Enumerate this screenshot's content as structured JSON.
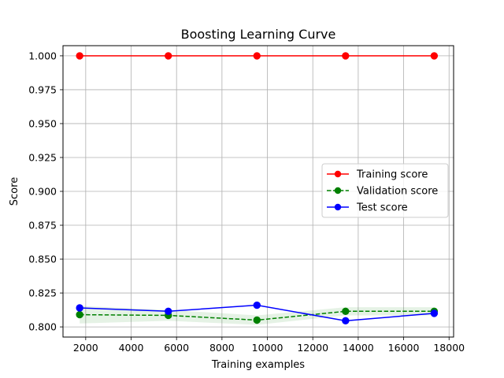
{
  "chart_data": {
    "type": "line",
    "title": "Boosting Learning Curve",
    "xlabel": "Training examples",
    "ylabel": "Score",
    "xlim": [
      1000,
      18200
    ],
    "ylim": [
      0.7925,
      1.0075
    ],
    "xticks": [
      2000,
      4000,
      6000,
      8000,
      10000,
      12000,
      14000,
      16000,
      18000
    ],
    "xtick_labels": [
      "2000",
      "4000",
      "6000",
      "8000",
      "10000",
      "12000",
      "14000",
      "16000",
      "18000"
    ],
    "yticks": [
      0.8,
      0.825,
      0.85,
      0.875,
      0.9,
      0.925,
      0.95,
      0.975,
      1.0
    ],
    "ytick_labels": [
      "0.800",
      "0.825",
      "0.850",
      "0.875",
      "0.900",
      "0.925",
      "0.950",
      "0.975",
      "1.000"
    ],
    "grid": true,
    "legend_position": "center-right",
    "x": [
      1734,
      5637,
      9540,
      13443,
      17346
    ],
    "series": [
      {
        "name": "Training score",
        "values": [
          1.0,
          1.0,
          1.0,
          1.0,
          1.0
        ],
        "color": "#ff0000",
        "linestyle": "solid",
        "marker": "circle",
        "band": [
          [
            1.0,
            1.0
          ],
          [
            1.0,
            1.0
          ],
          [
            1.0,
            1.0
          ],
          [
            1.0,
            1.0
          ],
          [
            1.0,
            1.0
          ]
        ]
      },
      {
        "name": "Validation score",
        "values": [
          0.809,
          0.8085,
          0.805,
          0.8115,
          0.8115
        ],
        "color": "#008000",
        "linestyle": "dashed",
        "marker": "circle",
        "band": [
          [
            0.8025,
            0.8155
          ],
          [
            0.8045,
            0.8125
          ],
          [
            0.8015,
            0.8085
          ],
          [
            0.8085,
            0.8145
          ],
          [
            0.8085,
            0.8145
          ]
        ]
      },
      {
        "name": "Test score",
        "values": [
          0.814,
          0.8115,
          0.816,
          0.8045,
          0.81
        ],
        "color": "#0000ff",
        "linestyle": "solid",
        "marker": "circle"
      }
    ]
  }
}
